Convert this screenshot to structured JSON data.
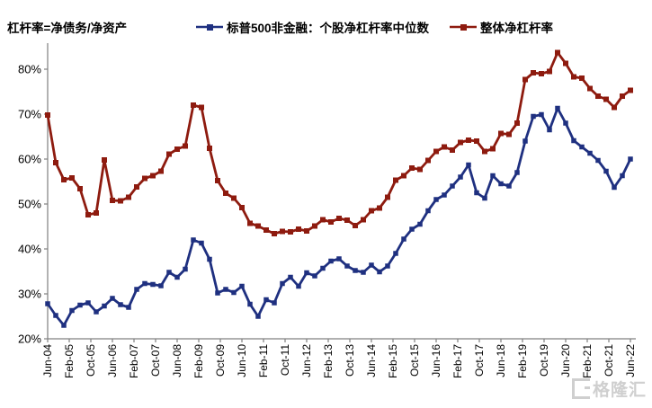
{
  "header": {
    "title": "杠杆率=净债务/净资产"
  },
  "legend": {
    "series1_label": "标普500非金融：个股净杠杆率中位数",
    "series2_label": "整体净杠杆率"
  },
  "watermark": {
    "text": "格隆汇",
    "logo": "gelonghui-bracket-G"
  },
  "chart_data": {
    "type": "line",
    "title": "杠杆率=净债务/净资产",
    "xlabel": "",
    "ylabel": "",
    "unit": "%",
    "grid": false,
    "legend_position": "top-center",
    "x_range": {
      "start": "Jun-04",
      "end": "Jun-22",
      "frequency": "quarterly"
    },
    "x_tick_labels": [
      "Jun-04",
      "Feb-05",
      "Oct-05",
      "Jun-06",
      "Feb-07",
      "Oct-07",
      "Jun-08",
      "Feb-09",
      "Oct-09",
      "Jun-10",
      "Feb-11",
      "Oct-11",
      "Jun-12",
      "Feb-13",
      "Oct-13",
      "Jun-14",
      "Feb-15",
      "Oct-15",
      "Jun-16",
      "Feb-17",
      "Oct-17",
      "Jun-18",
      "Feb-19",
      "Oct-19",
      "Jun-20",
      "Feb-21",
      "Oct-21",
      "Jun-22"
    ],
    "y_axis": {
      "min": 20,
      "max": 85,
      "ticks": [
        20,
        30,
        40,
        50,
        60,
        70,
        80
      ],
      "tick_labels": [
        "20%",
        "30%",
        "40%",
        "50%",
        "60%",
        "70%",
        "80%"
      ]
    },
    "series": [
      {
        "name": "整体净杠杆率",
        "color": "#8e1b0f",
        "marker": "square",
        "values": [
          69.8,
          59.2,
          55.4,
          55.8,
          53.4,
          47.6,
          48.0,
          59.8,
          50.8,
          50.7,
          51.5,
          53.8,
          55.7,
          56.3,
          57.3,
          61.1,
          62.2,
          62.9,
          72.0,
          71.5,
          62.4,
          55.2,
          52.4,
          51.3,
          49.2,
          45.7,
          45.1,
          44.2,
          43.4,
          43.9,
          43.8,
          44.4,
          44.0,
          45.1,
          46.5,
          46.0,
          46.8,
          46.4,
          45.2,
          46.5,
          48.5,
          49.1,
          51.5,
          55.3,
          56.3,
          58.0,
          57.7,
          59.7,
          61.7,
          62.7,
          62.0,
          63.7,
          64.2,
          64.0,
          61.7,
          62.3,
          65.7,
          65.5,
          68.0,
          77.7,
          79.2,
          79.0,
          79.5,
          83.7,
          81.3,
          78.3,
          78.0,
          75.7,
          74.0,
          73.3,
          71.5,
          74.0,
          75.3
        ]
      },
      {
        "name": "标普500非金融：个股净杠杆率中位数",
        "color": "#1f3080",
        "marker": "square",
        "values": [
          27.8,
          25.2,
          23.0,
          26.3,
          27.5,
          28.0,
          26.0,
          27.3,
          29.0,
          27.6,
          27.0,
          31.0,
          32.3,
          32.1,
          31.8,
          34.8,
          33.7,
          35.5,
          42.0,
          41.3,
          37.7,
          30.2,
          31.0,
          30.3,
          31.7,
          27.7,
          25.0,
          28.7,
          28.0,
          32.3,
          33.7,
          31.7,
          34.7,
          34.0,
          35.7,
          37.3,
          37.8,
          36.2,
          35.2,
          34.8,
          36.4,
          34.9,
          36.2,
          39.0,
          42.2,
          44.4,
          45.5,
          48.5,
          51.0,
          52.0,
          54.0,
          56.0,
          58.7,
          52.5,
          51.3,
          56.3,
          54.5,
          54.0,
          57.0,
          64.0,
          69.5,
          69.9,
          66.5,
          71.3,
          68.0,
          64.1,
          62.7,
          61.3,
          59.7,
          57.3,
          53.7,
          56.3,
          60.0
        ]
      }
    ]
  }
}
